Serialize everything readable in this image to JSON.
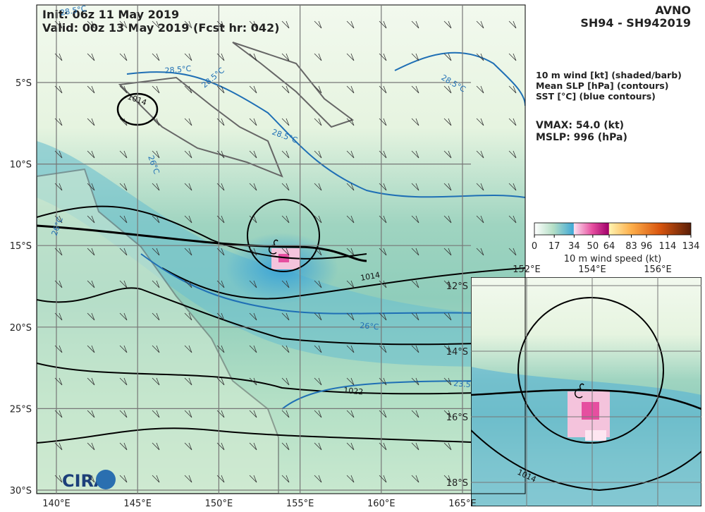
{
  "header": {
    "init": "Init:  06z 11 May 2019",
    "valid": "Valid: 00z 13 May 2019 (Fcst hr: 042)",
    "model": "AVNO",
    "storm": "SH94 - SH942019"
  },
  "legend": [
    "10 m wind [kt] (shaded/barb)",
    "Mean SLP [hPa] (contours)",
    "SST [°C] (blue contours)"
  ],
  "vmax": "VMAX:  54.0 (kt)",
  "mslp": "MSLP:  996 (hPa)",
  "colorbar": {
    "ticks": [
      0,
      17,
      34,
      50,
      64,
      83,
      96,
      114,
      134
    ],
    "label": "10 m wind speed (kt)"
  },
  "map": {
    "lon_labels": [
      "140°E",
      "145°E",
      "150°E",
      "155°E",
      "160°E",
      "165°E"
    ],
    "lat_labels": [
      "5°S",
      "10°S",
      "15°S",
      "20°S",
      "25°S",
      "30°S"
    ],
    "slp_labels": [
      "1014",
      "1014",
      "1022"
    ],
    "sst_labels": [
      "28.5°C",
      "28.5°C",
      "28.5°C",
      "28.5°C",
      "28.5°C",
      "26°C",
      "26°C",
      "26°C",
      "23.5"
    ]
  },
  "inset": {
    "lon_labels": [
      "152°E",
      "154°E",
      "156°E"
    ],
    "lat_labels": [
      "12°S",
      "14°S",
      "16°S",
      "18°S"
    ],
    "slp_label": "1014"
  },
  "logo": "CIRA"
}
